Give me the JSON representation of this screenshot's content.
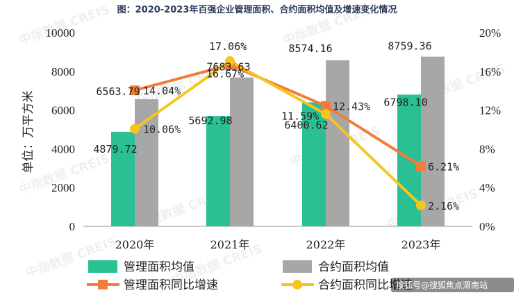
{
  "chart_data": {
    "type": "bar+line",
    "title": "图：2020-2023年百强企业管理面积、合约面积均值及增速变化情况",
    "categories": [
      "2020年",
      "2021年",
      "2022年",
      "2023年"
    ],
    "ylabel_left": "单位：万平方米",
    "ylim_left": [
      0,
      10000
    ],
    "yticks_left": [
      "0",
      "2000",
      "4000",
      "6000",
      "8000",
      "10000"
    ],
    "ylim_right": [
      0,
      20
    ],
    "yticks_right": [
      "0%",
      "4%",
      "8%",
      "12%",
      "16%",
      "20%"
    ],
    "bar_series": [
      {
        "name": "管理面积均值",
        "color": "#2bbf94",
        "values": [
          4879.72,
          5692.98,
          6400.62,
          6798.1
        ],
        "labels": [
          "4879.72",
          "5692.98",
          "6400.62",
          "6798.10"
        ]
      },
      {
        "name": "合约面积均值",
        "color": "#a7a7a7",
        "values": [
          6563.79,
          7683.63,
          8574.16,
          8759.36
        ],
        "labels": [
          "6563.79",
          "7683.63",
          "8574.16",
          "8759.36"
        ]
      }
    ],
    "line_series": [
      {
        "name": "管理面积同比增速",
        "color": "#f07e3a",
        "marker": "square",
        "values": [
          14.04,
          16.67,
          12.43,
          6.21
        ],
        "labels": [
          "14.04%",
          "16.67%",
          "12.43%",
          "6.21%"
        ]
      },
      {
        "name": "合约面积同比增速",
        "color": "#f6c61e",
        "marker": "circle",
        "values": [
          10.06,
          17.06,
          11.59,
          2.16
        ],
        "labels": [
          "10.06%",
          "17.06%",
          "11.59%",
          "2.16%"
        ]
      }
    ]
  },
  "watermark": {
    "text": "中指数据 CREIS"
  },
  "sohu_badge": {
    "text": "搜狐号@搜狐焦点渭南站"
  }
}
